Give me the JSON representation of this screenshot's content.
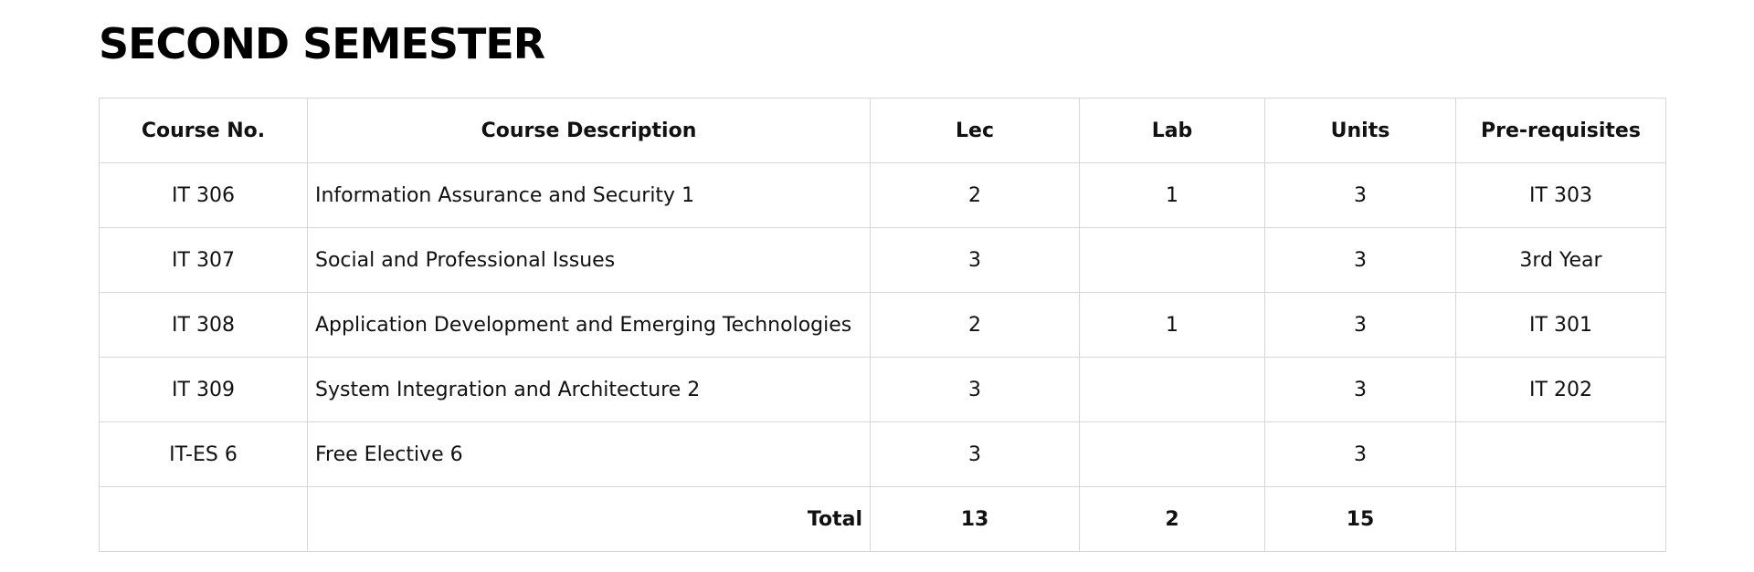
{
  "page": {
    "title": "SECOND SEMESTER"
  },
  "table": {
    "headers": {
      "course_no": "Course No.",
      "description": "Course Description",
      "lec": "Lec",
      "lab": "Lab",
      "units": "Units",
      "prerequisites": "Pre-requisites"
    },
    "rows": [
      {
        "course_no": "IT 306",
        "description": "Information Assurance and Security 1",
        "lec": "2",
        "lab": "1",
        "units": "3",
        "prerequisites": "IT 303"
      },
      {
        "course_no": "IT 307",
        "description": "Social and Professional Issues",
        "lec": "3",
        "lab": "",
        "units": "3",
        "prerequisites": "3rd Year"
      },
      {
        "course_no": "IT 308",
        "description": "Application Development and Emerging Technologies",
        "lec": "2",
        "lab": "1",
        "units": "3",
        "prerequisites": "IT 301"
      },
      {
        "course_no": "IT 309",
        "description": "System Integration and Architecture 2",
        "lec": "3",
        "lab": "",
        "units": "3",
        "prerequisites": "IT 202"
      },
      {
        "course_no": "IT-ES 6",
        "description": "Free Elective 6",
        "lec": "3",
        "lab": "",
        "units": "3",
        "prerequisites": ""
      }
    ],
    "total": {
      "label": "Total",
      "lec": "13",
      "lab": "2",
      "units": "15"
    }
  }
}
